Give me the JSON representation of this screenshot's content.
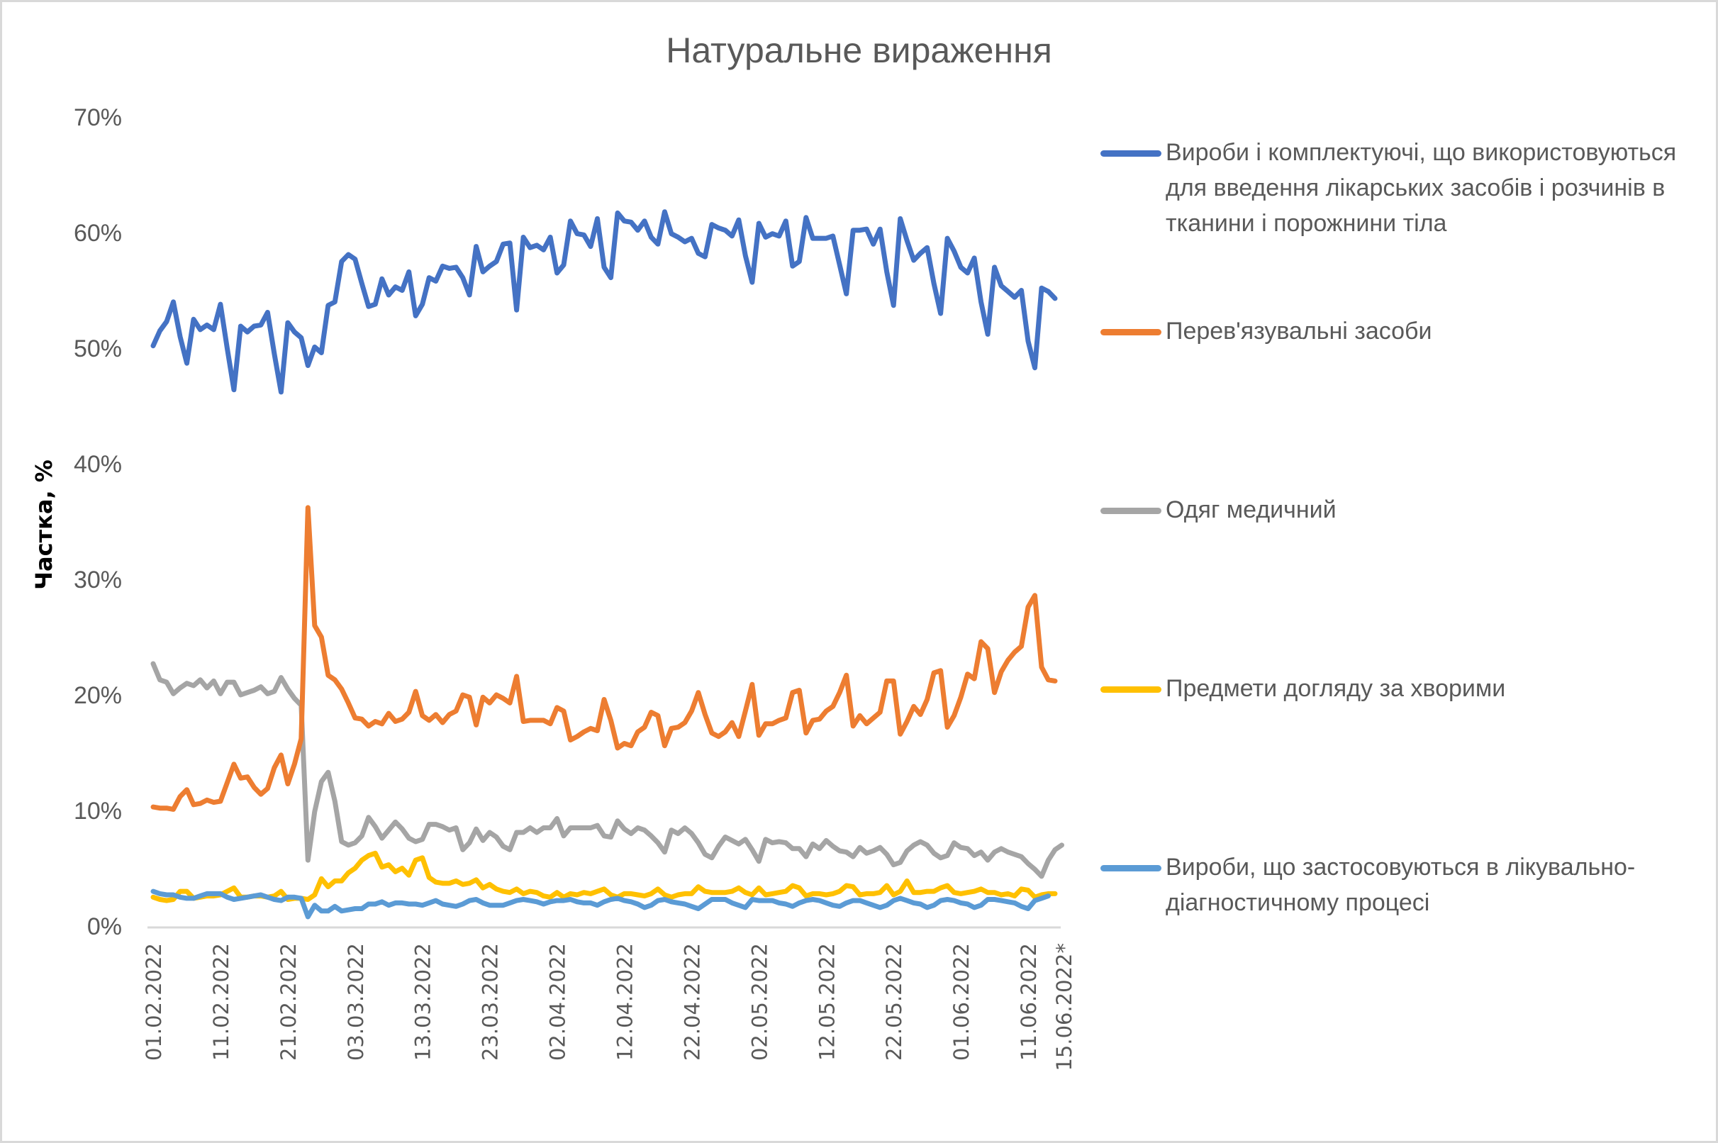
{
  "chart_data": {
    "type": "line",
    "title": "Натуральне вираження",
    "xlabel": "",
    "ylabel": "Частка, %",
    "ylim": [
      0,
      70
    ],
    "yticks": [
      "0%",
      "10%",
      "20%",
      "30%",
      "40%",
      "50%",
      "60%",
      "70%"
    ],
    "ytick_values": [
      0,
      10,
      20,
      30,
      40,
      50,
      60,
      70
    ],
    "grid": false,
    "legend_position": "right",
    "x_start": "01.02.2022",
    "x_end": "15.06.2022",
    "n_points": 135,
    "xtick_labels": [
      "01.02.2022",
      "11.02.2022",
      "21.02.2022",
      "03.03.2022",
      "13.03.2022",
      "23.03.2022",
      "02.04.2022",
      "12.04.2022",
      "22.04.2022",
      "02.05.2022",
      "12.05.2022",
      "22.05.2022",
      "01.06.2022",
      "11.06.2022",
      "15.06.2022*"
    ],
    "xtick_indices": [
      0,
      10,
      20,
      30,
      40,
      50,
      60,
      70,
      80,
      90,
      100,
      110,
      120,
      130,
      134
    ],
    "series": [
      {
        "name": "Вироби і комплектуючі, що використовуються для введення лікарських засобів і розчинів в тканини і порожнини тіла",
        "color": "#4472c4",
        "values": [
          50.2,
          51.5,
          52.3,
          54.0,
          51.0,
          48.7,
          52.5,
          51.6,
          52.0,
          51.6,
          53.8,
          50.0,
          46.4,
          51.9,
          51.4,
          51.9,
          52.0,
          53.1,
          49.5,
          46.2,
          52.2,
          51.4,
          50.9,
          48.5,
          50.1,
          49.6,
          53.7,
          54.0,
          57.5,
          58.1,
          57.7,
          55.6,
          53.6,
          53.8,
          56.0,
          54.6,
          55.3,
          55.0,
          56.6,
          52.8,
          53.8,
          56.1,
          55.8,
          57.1,
          56.9,
          57.0,
          56.1,
          54.6,
          58.8,
          56.6,
          57.1,
          57.5,
          59.0,
          59.1,
          53.3,
          59.6,
          58.7,
          58.9,
          58.5,
          59.6,
          56.5,
          57.2,
          61.0,
          59.9,
          59.8,
          58.8,
          61.2,
          57.0,
          56.1,
          61.7,
          61.0,
          60.9,
          60.2,
          61.0,
          59.6,
          59.0,
          61.8,
          59.9,
          59.6,
          59.2,
          59.5,
          58.2,
          57.9,
          60.7,
          60.4,
          60.2,
          59.7,
          61.1,
          58.0,
          55.7,
          60.8,
          59.6,
          59.9,
          59.7,
          61.0,
          57.1,
          57.5,
          61.3,
          59.5,
          59.5,
          59.5,
          59.7,
          57.2,
          54.7,
          60.2,
          60.2,
          60.3,
          59.0,
          60.3,
          56.6,
          53.7,
          61.2,
          59.3,
          57.6,
          58.2,
          58.7,
          55.6,
          53.0,
          59.5,
          58.4,
          57.0,
          56.5,
          57.8,
          54.0,
          51.2,
          57.0,
          55.4,
          54.9,
          54.4,
          55.0,
          50.6,
          48.3,
          55.2,
          54.9,
          54.3
        ]
      },
      {
        "name": "Перев'язувальні засоби",
        "color": "#ed7d31",
        "values": [
          10.3,
          10.2,
          10.2,
          10.1,
          11.2,
          11.8,
          10.5,
          10.6,
          10.9,
          10.7,
          10.8,
          12.4,
          14.0,
          12.8,
          12.9,
          12.0,
          11.4,
          11.9,
          13.7,
          14.8,
          12.3,
          14.0,
          16.2,
          36.2,
          26.0,
          25.0,
          21.7,
          21.3,
          20.5,
          19.3,
          18.0,
          17.9,
          17.3,
          17.7,
          17.5,
          18.4,
          17.7,
          17.9,
          18.5,
          20.3,
          18.2,
          17.8,
          18.3,
          17.6,
          18.3,
          18.6,
          20.0,
          19.8,
          17.4,
          19.8,
          19.3,
          20.0,
          19.7,
          19.3,
          21.6,
          17.7,
          17.8,
          17.8,
          17.8,
          17.5,
          18.9,
          18.6,
          16.1,
          16.4,
          16.8,
          17.1,
          16.9,
          19.6,
          17.8,
          15.4,
          15.8,
          15.6,
          16.8,
          17.2,
          18.5,
          18.2,
          15.6,
          17.1,
          17.2,
          17.6,
          18.6,
          20.2,
          18.3,
          16.7,
          16.4,
          16.8,
          17.6,
          16.4,
          18.6,
          20.9,
          16.5,
          17.5,
          17.5,
          17.8,
          18.0,
          20.2,
          20.4,
          16.7,
          17.8,
          17.9,
          18.6,
          19.0,
          20.2,
          21.7,
          17.3,
          18.2,
          17.5,
          18.0,
          18.5,
          21.2,
          21.2,
          16.6,
          17.7,
          19.0,
          18.3,
          19.6,
          21.9,
          22.1,
          17.2,
          18.2,
          19.8,
          21.8,
          21.4,
          24.6,
          24.0,
          20.2,
          22.0,
          23.0,
          23.7,
          24.2,
          27.6,
          28.6,
          22.4,
          21.3,
          21.2
        ]
      },
      {
        "name": "Одяг медичний",
        "color": "#a5a5a5",
        "values": [
          22.7,
          21.3,
          21.1,
          20.1,
          20.6,
          21.0,
          20.8,
          21.3,
          20.6,
          21.2,
          20.1,
          21.1,
          21.1,
          20.0,
          20.2,
          20.4,
          20.7,
          20.1,
          20.3,
          21.5,
          20.5,
          19.7,
          19.1,
          5.7,
          9.9,
          12.5,
          13.3,
          10.8,
          7.3,
          7.0,
          7.2,
          7.8,
          9.4,
          8.6,
          7.6,
          8.3,
          9.0,
          8.4,
          7.6,
          7.3,
          7.5,
          8.8,
          8.8,
          8.6,
          8.3,
          8.5,
          6.6,
          7.2,
          8.4,
          7.4,
          8.1,
          7.7,
          6.9,
          6.6,
          8.1,
          8.1,
          8.5,
          8.1,
          8.5,
          8.5,
          9.3,
          7.8,
          8.5,
          8.5,
          8.5,
          8.5,
          8.7,
          7.8,
          7.7,
          9.1,
          8.4,
          8.0,
          8.5,
          8.3,
          7.8,
          7.2,
          6.4,
          8.3,
          8.0,
          8.5,
          8.0,
          7.2,
          6.2,
          5.9,
          6.9,
          7.7,
          7.4,
          7.1,
          7.5,
          6.6,
          5.6,
          7.5,
          7.2,
          7.3,
          7.2,
          6.7,
          6.7,
          6.0,
          7.1,
          6.7,
          7.4,
          6.9,
          6.5,
          6.4,
          6.0,
          6.8,
          6.3,
          6.5,
          6.8,
          6.2,
          5.3,
          5.5,
          6.5,
          7.0,
          7.3,
          7.0,
          6.3,
          5.9,
          6.1,
          7.2,
          6.8,
          6.7,
          6.1,
          6.4,
          5.7,
          6.4,
          6.7,
          6.4,
          6.2,
          6.0,
          5.4,
          4.9,
          4.3,
          5.7,
          6.6,
          7.0
        ]
      },
      {
        "name": "Предмети догляду за хворими",
        "color": "#ffc000",
        "values": [
          2.5,
          2.3,
          2.2,
          2.3,
          3.0,
          3.0,
          2.4,
          2.5,
          2.6,
          2.6,
          2.7,
          3.0,
          3.3,
          2.5,
          2.5,
          2.6,
          2.6,
          2.5,
          2.6,
          3.0,
          2.3,
          2.4,
          2.4,
          2.3,
          2.7,
          4.1,
          3.4,
          3.9,
          3.9,
          4.6,
          5.0,
          5.7,
          6.1,
          6.3,
          5.1,
          5.3,
          4.7,
          5.0,
          4.4,
          5.7,
          5.9,
          4.2,
          3.8,
          3.7,
          3.7,
          3.9,
          3.6,
          3.7,
          4.0,
          3.3,
          3.6,
          3.2,
          3.0,
          2.9,
          3.2,
          2.8,
          3.0,
          2.9,
          2.6,
          2.5,
          2.9,
          2.5,
          2.8,
          2.7,
          2.9,
          2.8,
          3.0,
          3.2,
          2.7,
          2.5,
          2.8,
          2.8,
          2.7,
          2.6,
          2.8,
          3.2,
          2.7,
          2.5,
          2.7,
          2.8,
          2.8,
          3.4,
          3.0,
          2.9,
          2.9,
          2.9,
          3.0,
          3.3,
          2.9,
          2.7,
          3.3,
          2.7,
          2.8,
          2.9,
          3.0,
          3.5,
          3.3,
          2.6,
          2.8,
          2.8,
          2.7,
          2.8,
          3.0,
          3.5,
          3.4,
          2.7,
          2.8,
          2.8,
          2.9,
          3.5,
          2.7,
          3.0,
          3.9,
          2.9,
          2.9,
          3.0,
          3.0,
          3.3,
          3.5,
          2.9,
          2.8,
          2.9,
          3.0,
          3.2,
          2.9,
          2.9,
          2.7,
          2.8,
          2.6,
          3.2,
          3.1,
          2.5,
          2.7,
          2.8,
          2.8
        ]
      },
      {
        "name": "Вироби, що застосовуються в лікувально-діагностичному процесі",
        "color": "#5b9bd5",
        "values": [
          3.0,
          2.8,
          2.7,
          2.7,
          2.5,
          2.4,
          2.4,
          2.6,
          2.8,
          2.8,
          2.8,
          2.5,
          2.3,
          2.4,
          2.5,
          2.6,
          2.7,
          2.5,
          2.3,
          2.2,
          2.5,
          2.5,
          2.4,
          0.8,
          1.8,
          1.3,
          1.3,
          1.7,
          1.3,
          1.4,
          1.5,
          1.5,
          1.9,
          1.9,
          2.1,
          1.8,
          2.0,
          2.0,
          1.9,
          1.9,
          1.8,
          2.0,
          2.2,
          1.9,
          1.8,
          1.7,
          1.9,
          2.2,
          2.3,
          2.0,
          1.8,
          1.8,
          1.8,
          2.0,
          2.2,
          2.3,
          2.2,
          2.1,
          1.9,
          2.1,
          2.2,
          2.2,
          2.3,
          2.1,
          2.0,
          2.0,
          1.8,
          2.1,
          2.3,
          2.4,
          2.2,
          2.1,
          1.9,
          1.6,
          1.8,
          2.2,
          2.3,
          2.1,
          2.0,
          1.9,
          1.7,
          1.5,
          1.9,
          2.3,
          2.3,
          2.3,
          2.0,
          1.8,
          1.6,
          2.3,
          2.2,
          2.2,
          2.2,
          2.0,
          1.9,
          1.7,
          2.0,
          2.2,
          2.3,
          2.2,
          2.0,
          1.8,
          1.7,
          2.0,
          2.2,
          2.2,
          2.0,
          1.8,
          1.6,
          1.8,
          2.2,
          2.4,
          2.2,
          2.0,
          1.9,
          1.6,
          1.8,
          2.2,
          2.3,
          2.2,
          2.0,
          1.9,
          1.6,
          1.8,
          2.3,
          2.3,
          2.2,
          2.1,
          2.0,
          1.7,
          1.5,
          2.2,
          2.4,
          2.6
        ]
      }
    ]
  },
  "legend": {
    "items": [
      "Вироби і комплектуючі, що використовуються для введення лікарських засобів і розчинів в тканини і порожнини тіла",
      "Перев'язувальні засоби",
      "Одяг медичний",
      "Предмети догляду за хворими",
      "Вироби, що застосовуються в лікувально-діагностичному процесі"
    ]
  }
}
